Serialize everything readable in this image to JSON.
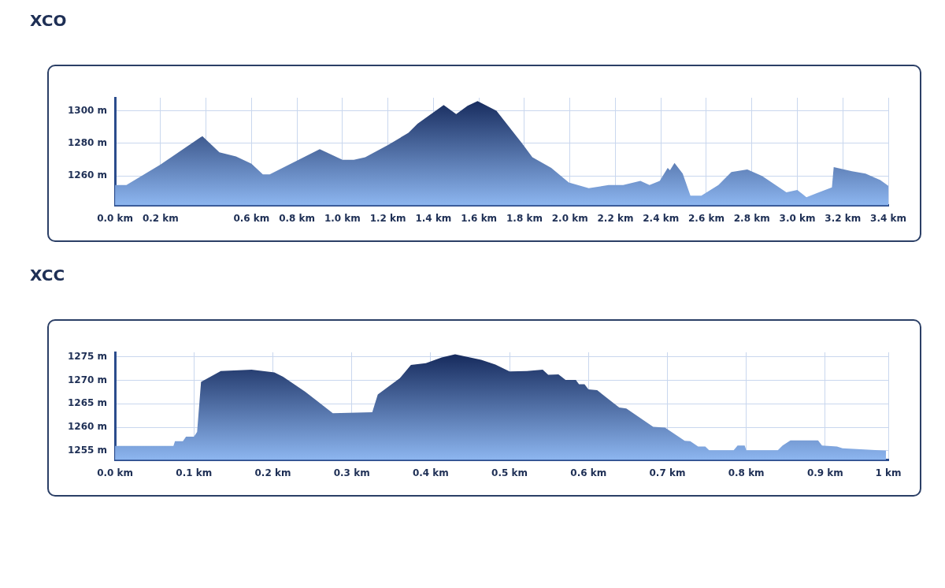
{
  "chart_data": [
    {
      "type": "area",
      "title": "XCO",
      "color": "#14285a",
      "grid": true,
      "x": [
        0,
        0.05,
        0.2,
        0.384,
        0.459,
        0.532,
        0.6,
        0.65,
        0.68,
        0.9,
        1.0,
        1.05,
        1.1,
        1.2,
        1.29,
        1.33,
        1.445,
        1.5,
        1.55,
        1.594,
        1.677,
        1.79,
        1.835,
        1.918,
        1.995,
        2.083,
        2.17,
        2.234,
        2.31,
        2.35,
        2.395,
        2.43,
        2.44,
        2.46,
        2.496,
        2.53,
        2.578,
        2.653,
        2.71,
        2.78,
        2.845,
        2.952,
        3.0,
        3.04,
        3.086,
        3.152,
        3.16,
        3.24,
        3.3,
        3.365,
        3.4
      ],
      "values": [
        1254.5,
        1254.5,
        1267,
        1284.5,
        1274.5,
        1272,
        1267.5,
        1261,
        1261,
        1276.5,
        1270,
        1270,
        1271.5,
        1279,
        1286.5,
        1292,
        1303.5,
        1298,
        1303,
        1306,
        1300,
        1280,
        1271.5,
        1265,
        1256,
        1252.5,
        1254.5,
        1254.5,
        1257,
        1254.5,
        1257,
        1265,
        1263.5,
        1268,
        1261.5,
        1248,
        1248,
        1254.5,
        1262.5,
        1264,
        1260,
        1250,
        1251.5,
        1247,
        1249.5,
        1253,
        1265.5,
        1263,
        1261.5,
        1257.5,
        1254
      ],
      "xlim": [
        0,
        3.4
      ],
      "ylim": [
        1242,
        1308
      ],
      "xticks": [
        {
          "value": 0,
          "label": "0.0 km"
        },
        {
          "value": 0.2,
          "label": "0.2 km"
        },
        {
          "value": 0.4,
          "label": null
        },
        {
          "value": 0.6,
          "label": "0.6 km"
        },
        {
          "value": 0.8,
          "label": "0.8 km"
        },
        {
          "value": 1.0,
          "label": "1.0 km"
        },
        {
          "value": 1.2,
          "label": "1.2 km"
        },
        {
          "value": 1.4,
          "label": "1.4 km"
        },
        {
          "value": 1.6,
          "label": "1.6 km"
        },
        {
          "value": 1.8,
          "label": "1.8 km"
        },
        {
          "value": 2.0,
          "label": "2.0 km"
        },
        {
          "value": 2.2,
          "label": "2.2 km"
        },
        {
          "value": 2.4,
          "label": "2.4 km"
        },
        {
          "value": 2.6,
          "label": "2.6 km"
        },
        {
          "value": 2.8,
          "label": "2.8 km"
        },
        {
          "value": 3.0,
          "label": "3.0 km"
        },
        {
          "value": 3.2,
          "label": "3.2 km"
        },
        {
          "value": 3.4,
          "label": "3.4 km"
        }
      ],
      "yticks": [
        {
          "value": 1260,
          "label": "1260 m"
        },
        {
          "value": 1280,
          "label": "1280 m"
        },
        {
          "value": 1300,
          "label": "1300 m"
        }
      ]
    },
    {
      "type": "area",
      "title": "XCC",
      "color": "#14285a",
      "grid": true,
      "x": [
        0,
        0.074,
        0.076,
        0.086,
        0.09,
        0.1,
        0.104,
        0.109,
        0.134,
        0.173,
        0.202,
        0.213,
        0.241,
        0.276,
        0.326,
        0.333,
        0.361,
        0.375,
        0.394,
        0.414,
        0.431,
        0.464,
        0.482,
        0.5,
        0.522,
        0.542,
        0.549,
        0.562,
        0.571,
        0.584,
        0.588,
        0.595,
        0.6,
        0.611,
        0.639,
        0.648,
        0.682,
        0.697,
        0.722,
        0.729,
        0.739,
        0.748,
        0.753,
        0.784,
        0.789,
        0.798,
        0.8,
        0.84,
        0.846,
        0.856,
        0.891,
        0.896,
        0.915,
        0.922,
        0.977
      ],
      "values": [
        1256,
        1256,
        1257,
        1257,
        1258,
        1258,
        1259,
        1269.7,
        1272,
        1272.3,
        1271.7,
        1270.8,
        1267.6,
        1263,
        1263.2,
        1267,
        1270.5,
        1273.3,
        1273.7,
        1274.9,
        1275.6,
        1274.4,
        1273.4,
        1271.9,
        1272,
        1272.3,
        1271.2,
        1271.3,
        1270.1,
        1270.1,
        1269.2,
        1269.2,
        1268.1,
        1267.9,
        1264.2,
        1264,
        1260.1,
        1259.9,
        1257.1,
        1257,
        1255.9,
        1255.9,
        1255.1,
        1255.1,
        1256.1,
        1256.1,
        1255.1,
        1255.1,
        1256.1,
        1257.2,
        1257.2,
        1256.1,
        1255.9,
        1255.5,
        1255
      ],
      "xlim": [
        0,
        0.98
      ],
      "ylim": [
        1253,
        1276
      ],
      "xticks": [
        {
          "value": 0,
          "label": "0.0 km"
        },
        {
          "value": 0.1,
          "label": "0.1 km"
        },
        {
          "value": 0.2,
          "label": "0.2 km"
        },
        {
          "value": 0.3,
          "label": "0.3 km"
        },
        {
          "value": 0.4,
          "label": "0.4 km"
        },
        {
          "value": 0.5,
          "label": "0.5 km"
        },
        {
          "value": 0.6,
          "label": "0.6 km"
        },
        {
          "value": 0.7,
          "label": "0.7 km"
        },
        {
          "value": 0.8,
          "label": "0.8 km"
        },
        {
          "value": 0.9,
          "label": "0.9 km"
        },
        {
          "value": 0.98,
          "label": "1 km"
        }
      ],
      "yticks": [
        {
          "value": 1255,
          "label": "1255 m"
        },
        {
          "value": 1260,
          "label": "1260 m"
        },
        {
          "value": 1265,
          "label": "1265 m"
        },
        {
          "value": 1270,
          "label": "1270 m"
        },
        {
          "value": 1275,
          "label": "1275 m"
        }
      ]
    }
  ]
}
